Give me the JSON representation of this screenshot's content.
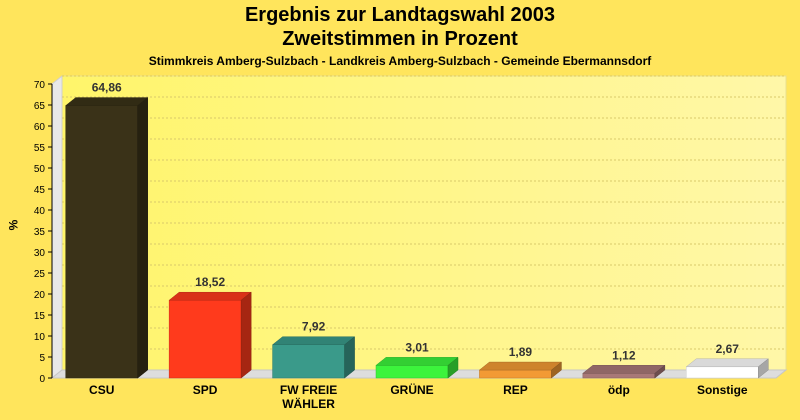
{
  "chart_data": {
    "type": "bar",
    "title": "Ergebnis zur Landtagswahl 2003",
    "subtitle_line": "Zweitstimmen in Prozent",
    "caption": "Stimmkreis Amberg-Sulzbach - Landkreis Amberg-Sulzbach - Gemeinde Ebermannsdorf",
    "ylabel": "%",
    "ylim": [
      0,
      70
    ],
    "yticks": [
      0,
      5,
      10,
      15,
      20,
      25,
      30,
      35,
      40,
      45,
      50,
      55,
      60,
      65,
      70
    ],
    "categories": [
      "CSU",
      "SPD",
      "FW FREIE WÄHLER",
      "GRÜNE",
      "REP",
      "ödp",
      "Sonstige"
    ],
    "category_lines": [
      [
        "CSU"
      ],
      [
        "SPD"
      ],
      [
        "FW FREIE",
        "WÄHLER"
      ],
      [
        "GRÜNE"
      ],
      [
        "REP"
      ],
      [
        "ödp"
      ],
      [
        "Sonstige"
      ]
    ],
    "values": [
      64.86,
      18.52,
      7.92,
      3.01,
      1.89,
      1.12,
      2.67
    ],
    "value_labels": [
      "64,86",
      "18,52",
      "7,92",
      "3,01",
      "1,89",
      "1,12",
      "2,67"
    ],
    "colors": [
      "#3a3218",
      "#ff3a1c",
      "#3a9a8a",
      "#3cf43c",
      "#f29a34",
      "#a87878",
      "#ffffff"
    ],
    "grid": true,
    "legend": "none"
  }
}
